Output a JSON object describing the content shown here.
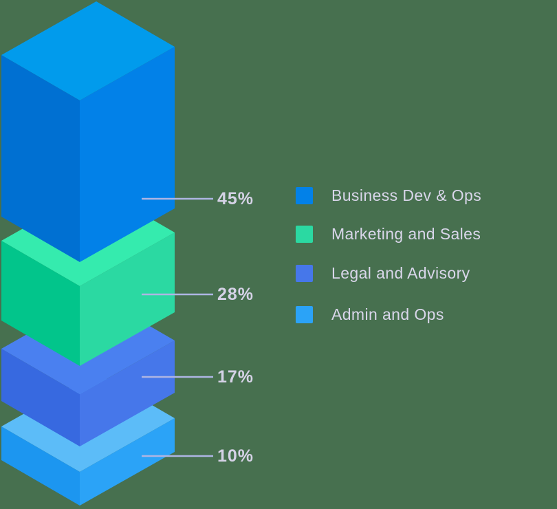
{
  "chart_data": {
    "type": "bar",
    "variant": "isometric-3d-stacked-percentages",
    "title": "",
    "legend_position": "right",
    "background": "#47704F",
    "leader_line_color": "#AEB5E3",
    "percent_text_color": "#D5D2E6",
    "legend_text_color": "#D9D6EA",
    "categories": [
      "Business Dev & Ops",
      "Marketing and Sales",
      "Legal and Advisory",
      "Admin and Ops"
    ],
    "values": [
      45,
      28,
      17,
      10
    ],
    "items": [
      {
        "label": "Business Dev & Ops",
        "value": 45,
        "percent_label": "45%",
        "colors": {
          "top": "#019BEC",
          "left": "#0070D2",
          "right": "#0281E8"
        }
      },
      {
        "label": "Marketing and Sales",
        "value": 28,
        "percent_label": "28%",
        "colors": {
          "top": "#35EBAE",
          "left": "#02C58B",
          "right": "#2BD9A2"
        }
      },
      {
        "label": "Legal and Advisory",
        "value": 17,
        "percent_label": "17%",
        "colors": {
          "top": "#4A80F0",
          "left": "#3769E0",
          "right": "#4677EA"
        }
      },
      {
        "label": "Admin and Ops",
        "value": 10,
        "percent_label": "10%",
        "colors": {
          "top": "#5CBCF8",
          "left": "#1C96F0",
          "right": "#2BA3F7"
        }
      }
    ]
  }
}
